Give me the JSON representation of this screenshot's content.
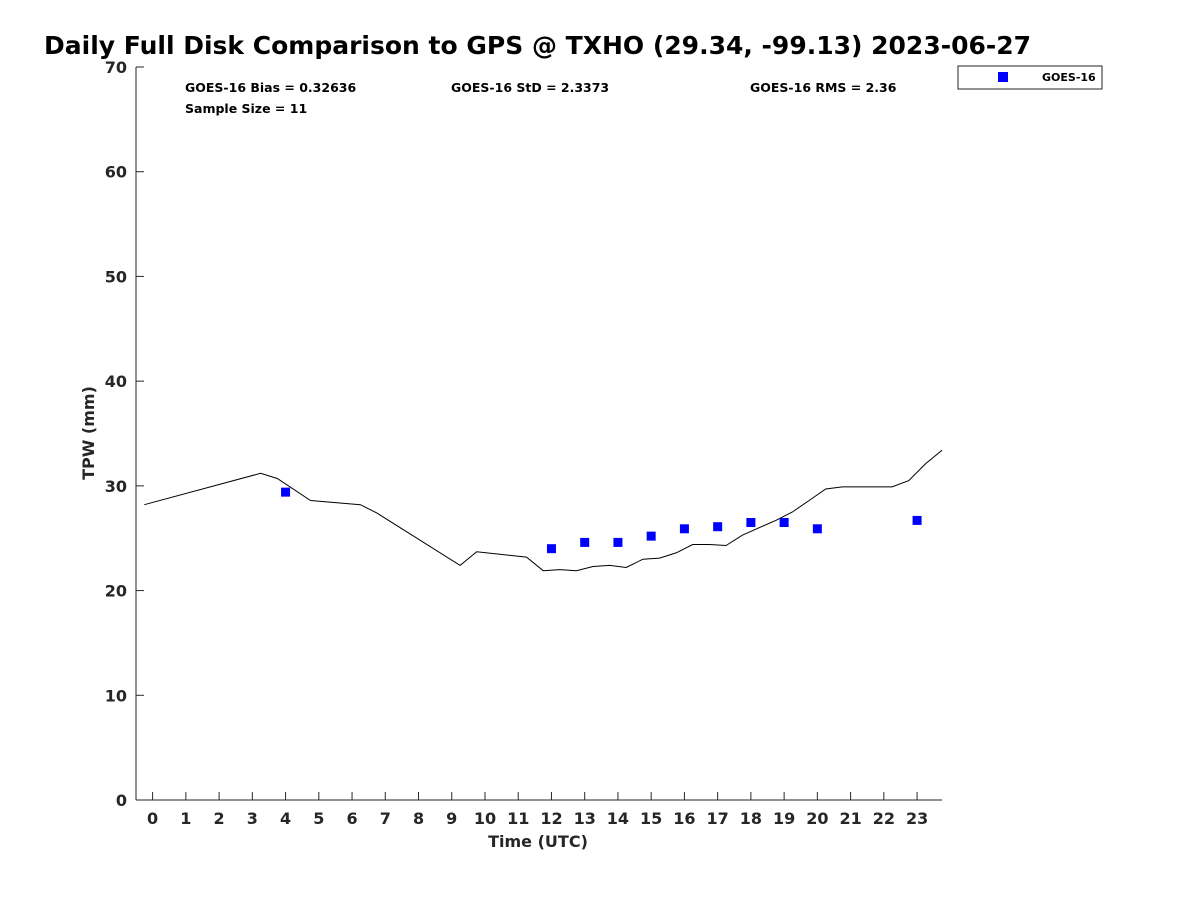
{
  "chart_data": {
    "type": "scatter",
    "title": "Daily Full Disk Comparison to GPS @ TXHO (29.34, -99.13) 2023-06-27",
    "xlabel": "Time (UTC)",
    "ylabel": "TPW (mm)",
    "xlim": [
      -0.5,
      23.75
    ],
    "ylim": [
      0,
      70
    ],
    "x_ticks": [
      0,
      1,
      2,
      3,
      4,
      5,
      6,
      7,
      8,
      9,
      10,
      11,
      12,
      13,
      14,
      15,
      16,
      17,
      18,
      19,
      20,
      21,
      22,
      23
    ],
    "y_ticks": [
      0,
      10,
      20,
      30,
      40,
      50,
      60,
      70
    ],
    "grid": false,
    "legend_position": "top-right",
    "stats": {
      "bias": "GOES-16 Bias = 0.32636",
      "std": "GOES-16 StD = 2.3373",
      "rms": "GOES-16 RMS = 2.36",
      "sample_size": "Sample Size = 11"
    },
    "series": [
      {
        "name": "GOES-16",
        "kind": "scatter",
        "marker": "square",
        "color": "#0000ff",
        "x": [
          4.0,
          12.0,
          13.0,
          14.0,
          15.0,
          16.0,
          17.0,
          18.0,
          19.0,
          20.0,
          23.0
        ],
        "y": [
          29.4,
          24.0,
          24.6,
          24.6,
          25.2,
          25.9,
          26.1,
          26.5,
          26.5,
          25.9,
          26.7
        ]
      },
      {
        "kind": "line",
        "color": "#000000",
        "x": [
          -0.25,
          3.25,
          3.75,
          4.75,
          6.25,
          6.75,
          9.25,
          9.75,
          11.25,
          11.75,
          12.25,
          12.75,
          13.25,
          13.75,
          14.25,
          14.75,
          15.25,
          15.75,
          16.25,
          16.75,
          17.25,
          17.75,
          18.25,
          18.75,
          19.25,
          19.75,
          20.25,
          20.75,
          21.25,
          21.75,
          22.25,
          22.75,
          23.25,
          23.75
        ],
        "y": [
          28.2,
          31.2,
          30.7,
          28.6,
          28.2,
          27.4,
          22.4,
          23.7,
          23.2,
          21.9,
          22.0,
          21.9,
          22.3,
          22.4,
          22.2,
          23.0,
          23.1,
          23.6,
          24.4,
          24.4,
          24.3,
          25.3,
          26.0,
          26.7,
          27.5,
          28.6,
          29.7,
          29.9,
          29.9,
          29.9,
          29.9,
          30.5,
          32.1,
          33.4
        ]
      }
    ]
  }
}
